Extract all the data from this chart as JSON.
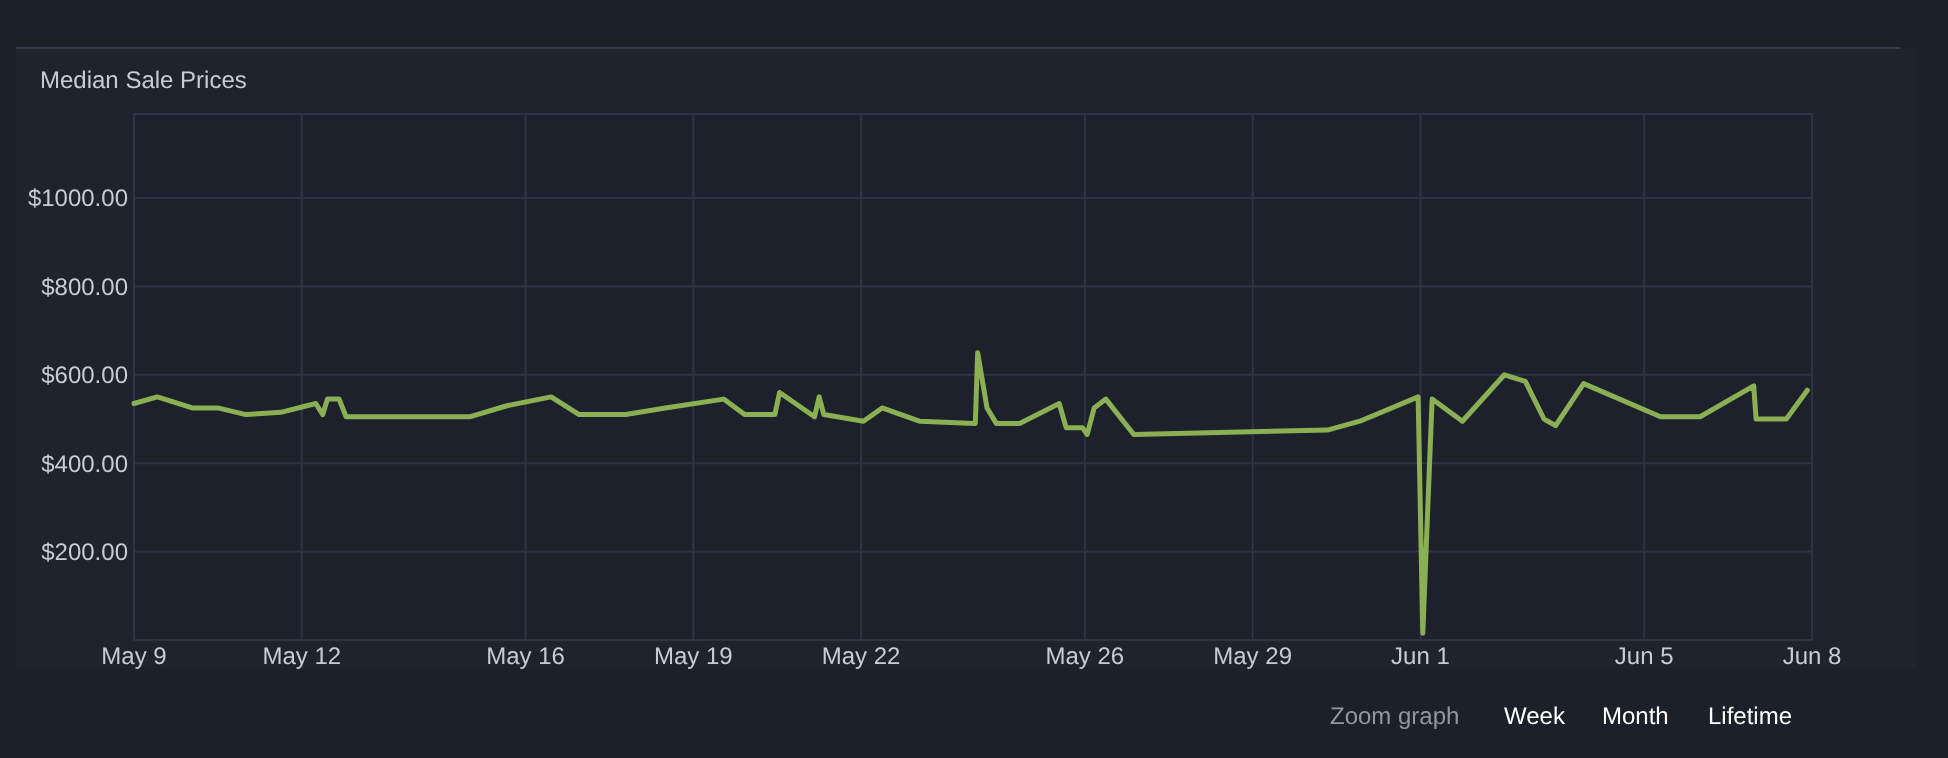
{
  "chart_data": {
    "type": "line",
    "title": "Median Sale Prices",
    "x": [
      "--05-09T00:00",
      "--05-09T10:00",
      "--05-10T01:00",
      "--05-10T12:00",
      "--05-11T00:00",
      "--05-11T15:00",
      "--05-12T06:00",
      "--05-12T09:00",
      "--05-12T11:00",
      "--05-12T16:00",
      "--05-12T19:00",
      "--05-15T00:00",
      "--05-15T16:00",
      "--05-16T11:00",
      "--05-16T23:00",
      "--05-17T19:00",
      "--05-18T12:00",
      "--05-19T13:00",
      "--05-19T22:00",
      "--05-20T11:00",
      "--05-20T13:00",
      "--05-21T04:00",
      "--05-21T06:00",
      "--05-21T08:00",
      "--05-22T01:00",
      "--05-22T09:00",
      "--05-23T01:00",
      "--05-24T01:00",
      "--05-24T02:00",
      "--05-24T06:00",
      "--05-24T10:00",
      "--05-24T20:00",
      "--05-25T13:00",
      "--05-25T16:00",
      "--05-25T23:00",
      "--05-26T01:00",
      "--05-26T04:00",
      "--05-26T09:00",
      "--05-26T21:00",
      "--05-30T08:00",
      "--05-30T22:00",
      "--05-31T23:00",
      "--06-01T01:00",
      "--06-01T05:00",
      "--06-01T18:00",
      "--06-02T12:00",
      "--06-02T21:00",
      "--06-03T05:00",
      "--06-03T10:00",
      "--06-03T22:00",
      "--06-05T07:00",
      "--06-06T00:00",
      "--06-06T23:00",
      "--06-07T00:00",
      "--06-07T13:00",
      "--06-07T22:00"
    ],
    "series": [
      {
        "color": "#8bb054",
        "values": [
          535,
          550,
          525,
          525,
          510,
          515,
          535,
          510,
          545,
          545,
          505,
          505,
          530,
          550,
          510,
          510,
          525,
          545,
          510,
          510,
          560,
          505,
          550,
          510,
          495,
          525,
          495,
          490,
          650,
          525,
          490,
          490,
          535,
          480,
          480,
          465,
          525,
          545,
          465,
          475,
          495,
          550,
          15,
          545,
          495,
          600,
          585,
          500,
          485,
          580,
          505,
          505,
          575,
          500,
          500,
          565
        ]
      }
    ],
    "xlim": [
      "--05-09",
      "--06-08"
    ],
    "xticks": [
      {
        "value": "--05-09",
        "label": "May 9"
      },
      {
        "value": "--05-12",
        "label": "May 12"
      },
      {
        "value": "--05-16",
        "label": "May 16"
      },
      {
        "value": "--05-19",
        "label": "May 19"
      },
      {
        "value": "--05-22",
        "label": "May 22"
      },
      {
        "value": "--05-26",
        "label": "May 26"
      },
      {
        "value": "--05-29",
        "label": "May 29"
      },
      {
        "value": "--06-01",
        "label": "Jun 1"
      },
      {
        "value": "--06-05",
        "label": "Jun 5"
      },
      {
        "value": "--06-08",
        "label": "Jun 8"
      }
    ],
    "ylim": [
      0,
      1190
    ],
    "yticks": [
      {
        "value": 200,
        "label": "$200.00"
      },
      {
        "value": 400,
        "label": "$400.00"
      },
      {
        "value": 600,
        "label": "$600.00"
      },
      {
        "value": 800,
        "label": "$800.00"
      },
      {
        "value": 1000,
        "label": "$1000.00"
      }
    ],
    "grid": true,
    "marker": "none",
    "line_style": "solid",
    "annotations": [
      "Zoom graph",
      "Week",
      "Month",
      "Lifetime"
    ]
  }
}
